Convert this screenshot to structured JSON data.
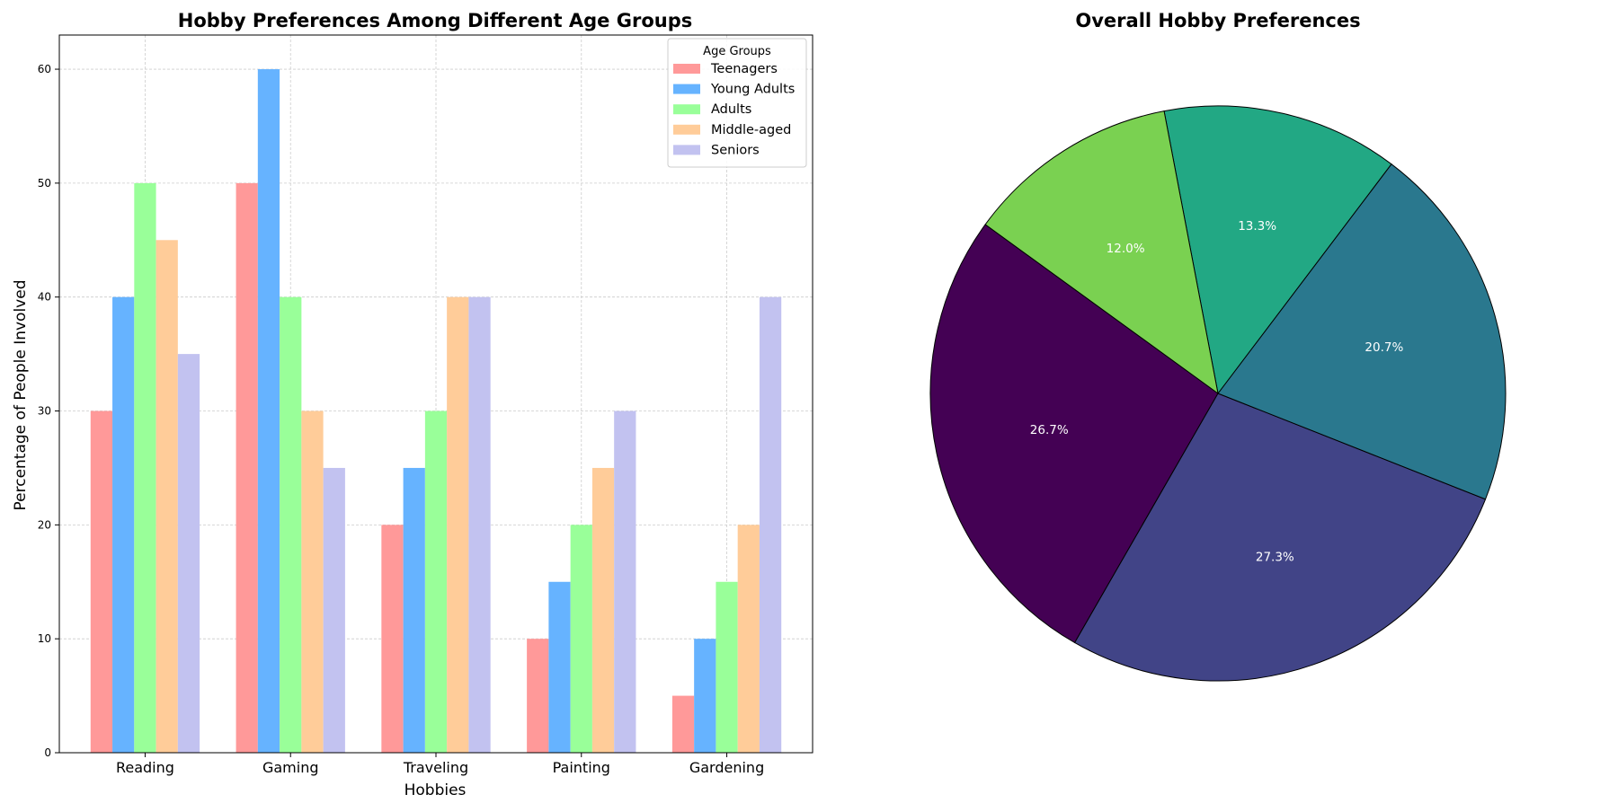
{
  "chart_data": [
    {
      "type": "bar",
      "title": "Hobby Preferences Among Different Age Groups",
      "xlabel": "Hobbies",
      "ylabel": "Percentage of People Involved",
      "categories": [
        "Reading",
        "Gaming",
        "Traveling",
        "Painting",
        "Gardening"
      ],
      "ylim": [
        0,
        63
      ],
      "yticks": [
        0,
        10,
        20,
        30,
        40,
        50,
        60
      ],
      "grid": true,
      "legend": {
        "title": "Age Groups",
        "position": "top-right"
      },
      "series": [
        {
          "name": "Teenagers",
          "color": "#ff9999",
          "values": [
            30,
            50,
            20,
            10,
            5
          ]
        },
        {
          "name": "Young Adults",
          "color": "#66b3ff",
          "values": [
            40,
            60,
            25,
            15,
            10
          ]
        },
        {
          "name": "Adults",
          "color": "#99ff99",
          "values": [
            50,
            40,
            30,
            20,
            15
          ]
        },
        {
          "name": "Middle-aged",
          "color": "#ffcc99",
          "values": [
            45,
            30,
            40,
            25,
            20
          ]
        },
        {
          "name": "Seniors",
          "color": "#c2c2f0",
          "values": [
            35,
            25,
            40,
            30,
            40
          ]
        }
      ]
    },
    {
      "type": "pie",
      "title": "Overall Hobby Preferences",
      "start_angle_deg": 144,
      "slices": [
        {
          "value": 26.7,
          "label": "26.7%",
          "color": "#440154"
        },
        {
          "value": 27.3,
          "label": "27.3%",
          "color": "#414487"
        },
        {
          "value": 20.7,
          "label": "20.7%",
          "color": "#2a788e"
        },
        {
          "value": 13.3,
          "label": "13.3%",
          "color": "#22a884"
        },
        {
          "value": 12.0,
          "label": "12.0%",
          "color": "#7ad151"
        }
      ]
    }
  ]
}
